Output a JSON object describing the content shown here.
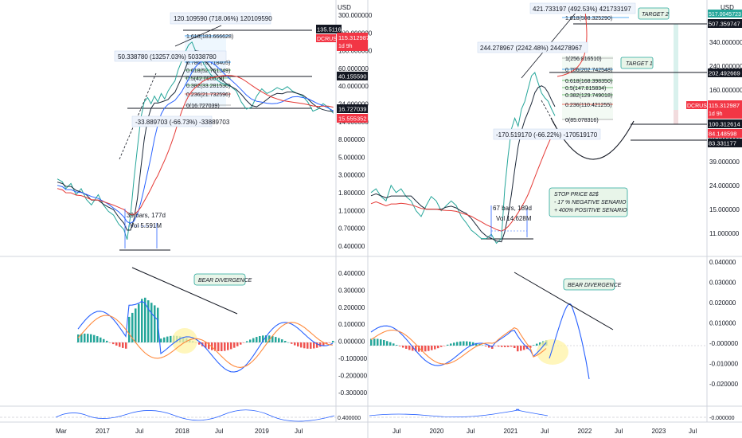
{
  "chart_data": [
    {
      "type": "line",
      "panel": "left-price",
      "currency": "USD",
      "axis_scale": "log",
      "y_ticks": [
        "300.000000",
        "180.000000",
        "100.000000",
        "60.000000",
        "40.000000",
        "24.000000",
        "14.000000",
        "8.000000",
        "5.000000",
        "3.000000",
        "1.800000",
        "1.100000",
        "0.700000",
        "0.400000"
      ],
      "last_label": "DCRUSD",
      "last_value": "115.312987",
      "countdown": "1d 9h",
      "price_tags": [
        {
          "text": "135.511617",
          "style": "dark"
        },
        {
          "text": "40.155590",
          "style": "dark"
        },
        {
          "text": "16.727039",
          "style": "dark"
        },
        {
          "text": "15.555352",
          "style": "red"
        }
      ],
      "measures": [
        "120.109590 (718.06%) 120109590",
        "50.338780 (13257.03%) 50338780",
        "-33.889703 (-66.73%) -33889703"
      ],
      "fib_levels": [
        "1.618(183.666628)",
        "0.786(70.718405)",
        "0.618(52.761349)",
        "0.5(42.000078)",
        "0.382(33.281536)",
        "0.236(21.732596)",
        "0(16.727039)"
      ],
      "bars_note": [
        "39 bars, 177d",
        "Vol 5.591M"
      ],
      "x_ticks": [
        "Mar",
        "2017",
        "Jul",
        "2018",
        "Jul",
        "2019",
        "Jul"
      ],
      "price_path": [
        [
          0,
          2.5
        ],
        [
          6,
          2.3
        ],
        [
          10,
          1.9
        ],
        [
          16,
          2.2
        ],
        [
          22,
          1.6
        ],
        [
          28,
          1.9
        ],
        [
          34,
          1.4
        ],
        [
          40,
          1.2
        ],
        [
          48,
          1.6
        ],
        [
          54,
          1.2
        ],
        [
          60,
          1.0
        ],
        [
          66,
          0.9
        ],
        [
          72,
          0.7
        ],
        [
          78,
          0.6
        ],
        [
          82,
          0.45
        ],
        [
          86,
          0.9
        ],
        [
          90,
          2.5
        ],
        [
          94,
          6
        ],
        [
          98,
          14
        ],
        [
          102,
          22
        ],
        [
          106,
          25
        ],
        [
          110,
          21
        ],
        [
          114,
          26
        ],
        [
          118,
          22
        ],
        [
          122,
          28
        ],
        [
          126,
          24
        ],
        [
          130,
          30
        ],
        [
          134,
          35
        ],
        [
          138,
          40
        ],
        [
          142,
          55
        ],
        [
          146,
          70
        ],
        [
          150,
          90
        ],
        [
          154,
          110
        ],
        [
          158,
          120
        ],
        [
          162,
          95
        ],
        [
          166,
          85
        ],
        [
          170,
          70
        ],
        [
          174,
          60
        ],
        [
          180,
          48
        ],
        [
          186,
          42
        ],
        [
          192,
          38
        ],
        [
          198,
          36
        ],
        [
          204,
          34
        ],
        [
          210,
          30
        ],
        [
          216,
          22
        ],
        [
          222,
          18
        ],
        [
          228,
          19
        ],
        [
          234,
          26
        ],
        [
          240,
          32
        ],
        [
          246,
          28
        ],
        [
          252,
          30
        ],
        [
          258,
          33
        ],
        [
          264,
          31
        ],
        [
          270,
          34
        ],
        [
          276,
          30
        ],
        [
          282,
          28
        ],
        [
          288,
          26
        ],
        [
          294,
          22
        ],
        [
          300,
          17
        ],
        [
          306,
          18
        ],
        [
          312,
          21
        ],
        [
          318,
          19
        ],
        [
          324,
          16
        ]
      ],
      "oscillator": {
        "y_ticks": [
          "0.400000",
          "0.300000",
          "0.200000",
          "0.100000",
          "0.000000",
          "-0.100000",
          "-0.200000",
          "-0.300000"
        ],
        "note": "BEAR DIVERGENCE"
      }
    },
    {
      "type": "line",
      "panel": "right-price",
      "currency": "USD",
      "axis_scale": "log",
      "y_ticks": [
        "340.000000",
        "240.000000",
        "160.000000",
        "100.000000",
        "62.000000",
        "39.000000",
        "24.000000",
        "15.000000",
        "11.000000"
      ],
      "top_tag": "517.0045723",
      "last_label": "DCRUSD",
      "last_value": "115.312987",
      "countdown": "1d 9h",
      "price_tags": [
        {
          "text": "507.359747",
          "style": "dark"
        },
        {
          "text": "202.492669",
          "style": "dark"
        },
        {
          "text": "100.312614",
          "style": "dark"
        },
        {
          "text": "84.148598",
          "style": "red"
        },
        {
          "text": "83.331177",
          "style": "dark"
        }
      ],
      "measures": [
        "421.733197 (492.53%) 421733197",
        "244.278967 (2242.48%) 244278967",
        "-170.519170 (-66.22%) -170519170"
      ],
      "fib_levels": [
        "1.618(508.325290)",
        "1(256.816510)",
        "0.786(202.742548)",
        "0.618(168.398350)",
        "0.5(147.815834)",
        "0.382(129.749018)",
        "0.236(110.421255)",
        "0(85.078316)"
      ],
      "bars_note": [
        "67 bars, 189d",
        "Vol 14.628M"
      ],
      "targets": [
        "TARGET 2",
        "TARGET 1"
      ],
      "stop_note": [
        "STOP PRICE 82$",
        "- 17 % NEGATIVE SENARIO",
        "+ 400%  POSITIVE SENARIO"
      ],
      "x_ticks": [
        "Jul",
        "2020",
        "Jul",
        "2021",
        "Jul",
        "2022",
        "Jul",
        "2023",
        "Jul"
      ],
      "price_path": [
        [
          0,
          28
        ],
        [
          6,
          30
        ],
        [
          12,
          26
        ],
        [
          18,
          24
        ],
        [
          24,
          32
        ],
        [
          30,
          28
        ],
        [
          36,
          30
        ],
        [
          42,
          26
        ],
        [
          48,
          24
        ],
        [
          54,
          20
        ],
        [
          60,
          18
        ],
        [
          66,
          22
        ],
        [
          72,
          26
        ],
        [
          78,
          24
        ],
        [
          84,
          20
        ],
        [
          90,
          22
        ],
        [
          96,
          24
        ],
        [
          102,
          22
        ],
        [
          108,
          18
        ],
        [
          114,
          16
        ],
        [
          120,
          14
        ],
        [
          126,
          13
        ],
        [
          132,
          12
        ],
        [
          138,
          12
        ],
        [
          144,
          13
        ],
        [
          150,
          11
        ],
        [
          156,
          12
        ],
        [
          160,
          30
        ],
        [
          164,
          55
        ],
        [
          168,
          90
        ],
        [
          172,
          110
        ],
        [
          176,
          95
        ],
        [
          180,
          130
        ],
        [
          184,
          150
        ],
        [
          188,
          190
        ],
        [
          192,
          240
        ],
        [
          196,
          255
        ],
        [
          200,
          210
        ],
        [
          204,
          175
        ],
        [
          208,
          160
        ],
        [
          212,
          150
        ],
        [
          216,
          130
        ],
        [
          220,
          115
        ]
      ],
      "oscillator": {
        "y_ticks": [
          "0.040000",
          "0.030000",
          "0.020000",
          "0.010000",
          "-0.000000",
          "-0.010000",
          "-0.020000"
        ],
        "note": "BEAR DIVERGENCE"
      }
    }
  ],
  "colors": {
    "price_up": "#26a69a",
    "price_down": "#ef5350",
    "ma_dark": "#1e2a3a",
    "ma_blue": "#2962ff",
    "ma_red": "#e53935",
    "fib_blue": "#2196f3",
    "fib_green": "#4caf50",
    "fib_red": "#f44336",
    "tag_dark": "#131722",
    "tag_red": "#f23645",
    "note_fill": "#e8f5e9",
    "highlight": "#fff3a6"
  }
}
